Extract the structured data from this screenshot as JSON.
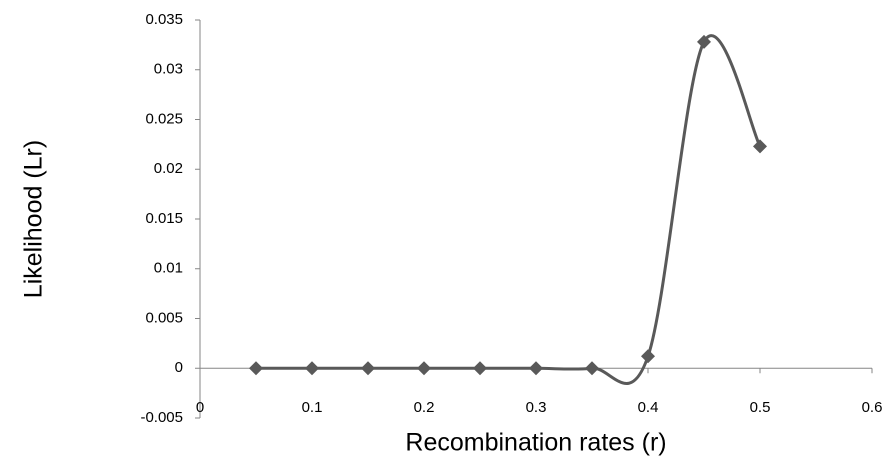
{
  "chart_data": {
    "type": "scatter-smooth",
    "x_label": "Recombination rates (r)",
    "y_label": "Likelihood (Lr)",
    "x": [
      0.05,
      0.1,
      0.15,
      0.2,
      0.25,
      0.3,
      0.35,
      0.4,
      0.45,
      0.5
    ],
    "values": [
      0,
      0,
      0,
      0,
      0,
      0,
      0,
      0.0012,
      0.0328,
      0.0223
    ],
    "color": "#595959",
    "xlim": [
      0,
      0.6
    ],
    "xticks": [
      0,
      0.1,
      0.2,
      0.3,
      0.4,
      0.5,
      0.6
    ],
    "ylim": [
      -0.005,
      0.035
    ],
    "yticks": [
      -0.005,
      0,
      0.005,
      0.01,
      0.015,
      0.02,
      0.025,
      0.03,
      0.035
    ]
  }
}
